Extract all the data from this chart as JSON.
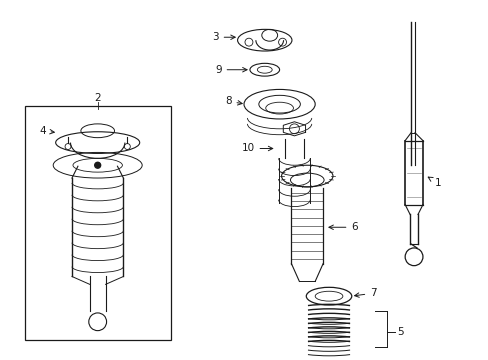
{
  "bg_color": "#ffffff",
  "line_color": "#1a1a1a",
  "figure_width": 4.89,
  "figure_height": 3.6,
  "dpi": 100
}
